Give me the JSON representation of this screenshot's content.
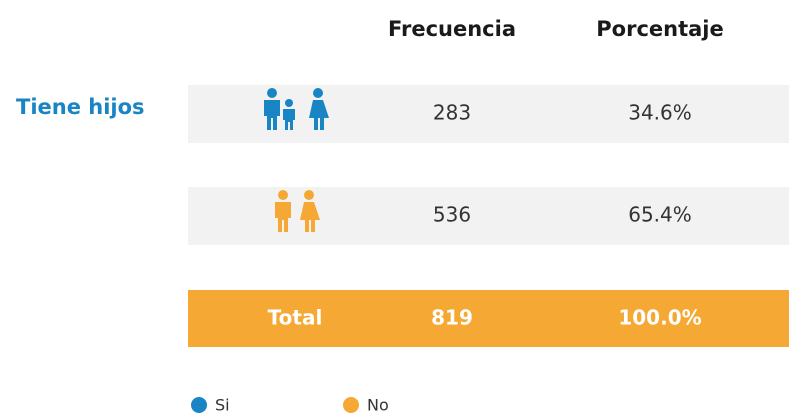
{
  "table": {
    "headers": [
      "Frecuencia",
      "Porcentaje"
    ],
    "row_label": "Tiene hijos",
    "rows": [
      [
        "283",
        "34.6%"
      ],
      [
        "536",
        "65.4%"
      ]
    ],
    "total": [
      "Total",
      "819",
      "100.0%"
    ]
  },
  "legend": [
    "Si",
    "No"
  ]
}
